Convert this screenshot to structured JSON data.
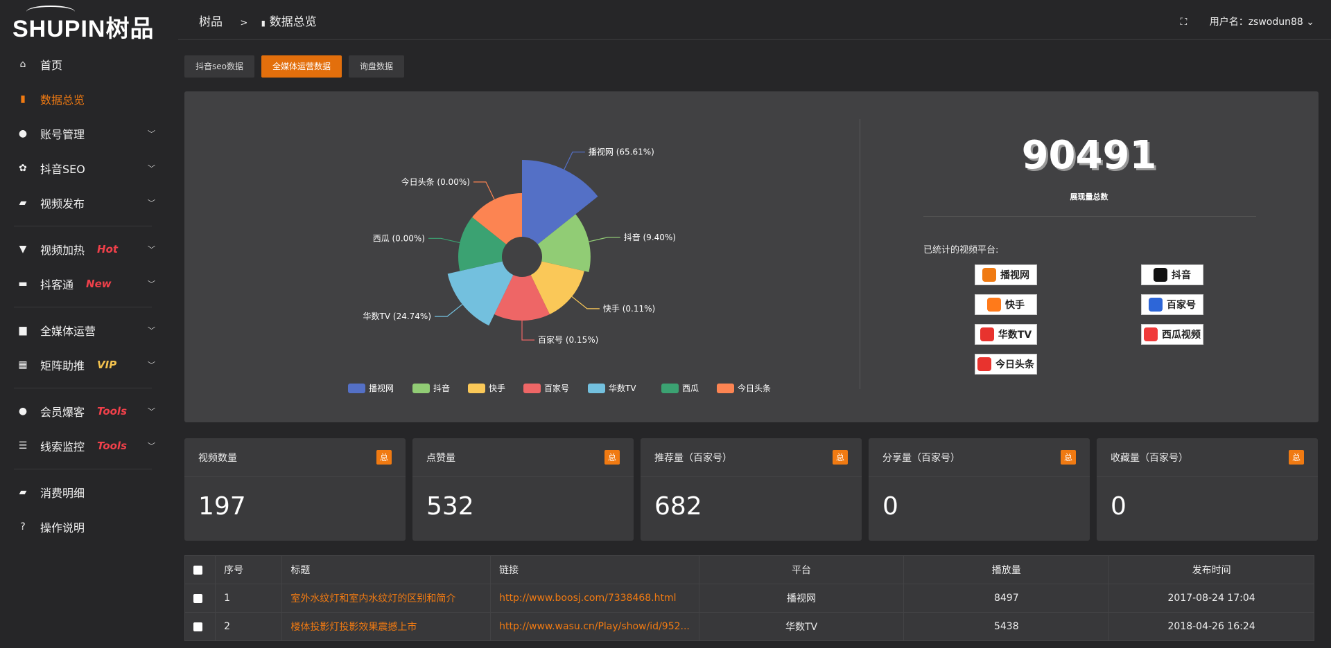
{
  "brand": {
    "logo_text": "SHUPIN树品"
  },
  "sidebar": {
    "items": [
      {
        "label": "首页",
        "icon": "home-icon",
        "glyph": "⌂"
      },
      {
        "label": "数据总览",
        "icon": "bar-chart-icon",
        "glyph": "▮",
        "active": true
      },
      {
        "label": "账号管理",
        "icon": "user-icon",
        "glyph": "●",
        "chev": true
      },
      {
        "label": "抖音SEO",
        "icon": "gear-icon",
        "glyph": "✿",
        "chev": true
      },
      {
        "label": "视频发布",
        "icon": "camera-icon",
        "glyph": "▰",
        "chev": true,
        "sep": true
      },
      {
        "label": "视频加热",
        "icon": "monitor-icon",
        "glyph": "▼",
        "badge": "Hot",
        "chev": true
      },
      {
        "label": "抖客通",
        "icon": "chat-icon",
        "glyph": "▬",
        "badge": "New",
        "chev": true,
        "sep": true
      },
      {
        "label": "全媒体运营",
        "icon": "desktop-icon",
        "glyph": "▆",
        "chev": true
      },
      {
        "label": "矩阵助推",
        "icon": "grid-icon",
        "glyph": "▦",
        "badge": "VIP",
        "chev": true,
        "sep": true
      },
      {
        "label": "会员爆客",
        "icon": "user-icon",
        "glyph": "●",
        "badge": "Tools",
        "chev": true
      },
      {
        "label": "线索监控",
        "icon": "sliders-icon",
        "glyph": "☰",
        "badge": "Tools",
        "chev": true,
        "sep": true
      },
      {
        "label": "消费明细",
        "icon": "wallet-icon",
        "glyph": "▰"
      },
      {
        "label": "操作说明",
        "icon": "help-icon",
        "glyph": "?"
      }
    ]
  },
  "header": {
    "breadcrumb": [
      "树品",
      ">",
      "数据总览"
    ],
    "user_label": "用户名：zswodun88"
  },
  "tabs": [
    {
      "label": "抖音seo数据"
    },
    {
      "label": "全媒体运营数据",
      "active": true
    },
    {
      "label": "询盘数据"
    }
  ],
  "summary": {
    "total": "90491",
    "total_label": "展现量总数",
    "platforms_title": "已统计的视频平台:",
    "platforms": [
      {
        "name": "播视网",
        "color": "#f07a12"
      },
      {
        "name": "抖音",
        "color": "#111"
      },
      {
        "name": "快手",
        "color": "#ff7a1a"
      },
      {
        "name": "百家号",
        "color": "#2d66d8"
      },
      {
        "name": "华数TV",
        "color": "#e8332e"
      },
      {
        "name": "西瓜视频",
        "color": "#f03a3a"
      },
      {
        "name": "今日头条",
        "color": "#e8332e"
      }
    ]
  },
  "chart_data": {
    "type": "pie",
    "rose": true,
    "categories": [
      "播视网",
      "抖音",
      "快手",
      "百家号",
      "华数TV",
      "西瓜",
      "今日头条"
    ],
    "values": [
      65.61,
      9.4,
      0.11,
      0.15,
      24.74,
      0.0,
      0.0
    ],
    "labels": [
      "播视网 (65.61%)",
      "抖音 (9.40%)",
      "快手 (0.11%)",
      "百家号 (0.15%)",
      "华数TV (24.74%)",
      "西瓜 (0.00%)",
      "今日头条 (0.00%)"
    ],
    "colors": [
      "#5470c6",
      "#91cc75",
      "#fac858",
      "#ee6666",
      "#73c0de",
      "#3ba272",
      "#fc8452"
    ],
    "legend": "bottom"
  },
  "cards": [
    {
      "title": "视频数量",
      "badge": "总",
      "value": "197"
    },
    {
      "title": "点赞量",
      "badge": "总",
      "value": "532"
    },
    {
      "title": "推荐量（百家号）",
      "badge": "总",
      "value": "682"
    },
    {
      "title": "分享量（百家号）",
      "badge": "总",
      "value": "0"
    },
    {
      "title": "收藏量（百家号）",
      "badge": "总",
      "value": "0"
    }
  ],
  "table": {
    "columns": [
      "序号",
      "标题",
      "链接",
      "平台",
      "播放量",
      "发布时间"
    ],
    "rows": [
      [
        "1",
        "室外水纹灯和室内水纹灯的区别和简介",
        "http://www.boosj.com/7338468.html",
        "播视网",
        "8497",
        "2017-08-24 17:04"
      ],
      [
        "2",
        "楼体投影灯投影效果震撼上市",
        "http://www.wasu.cn/Play/show/id/952...",
        "华数TV",
        "5438",
        "2018-04-26 16:24"
      ]
    ]
  }
}
